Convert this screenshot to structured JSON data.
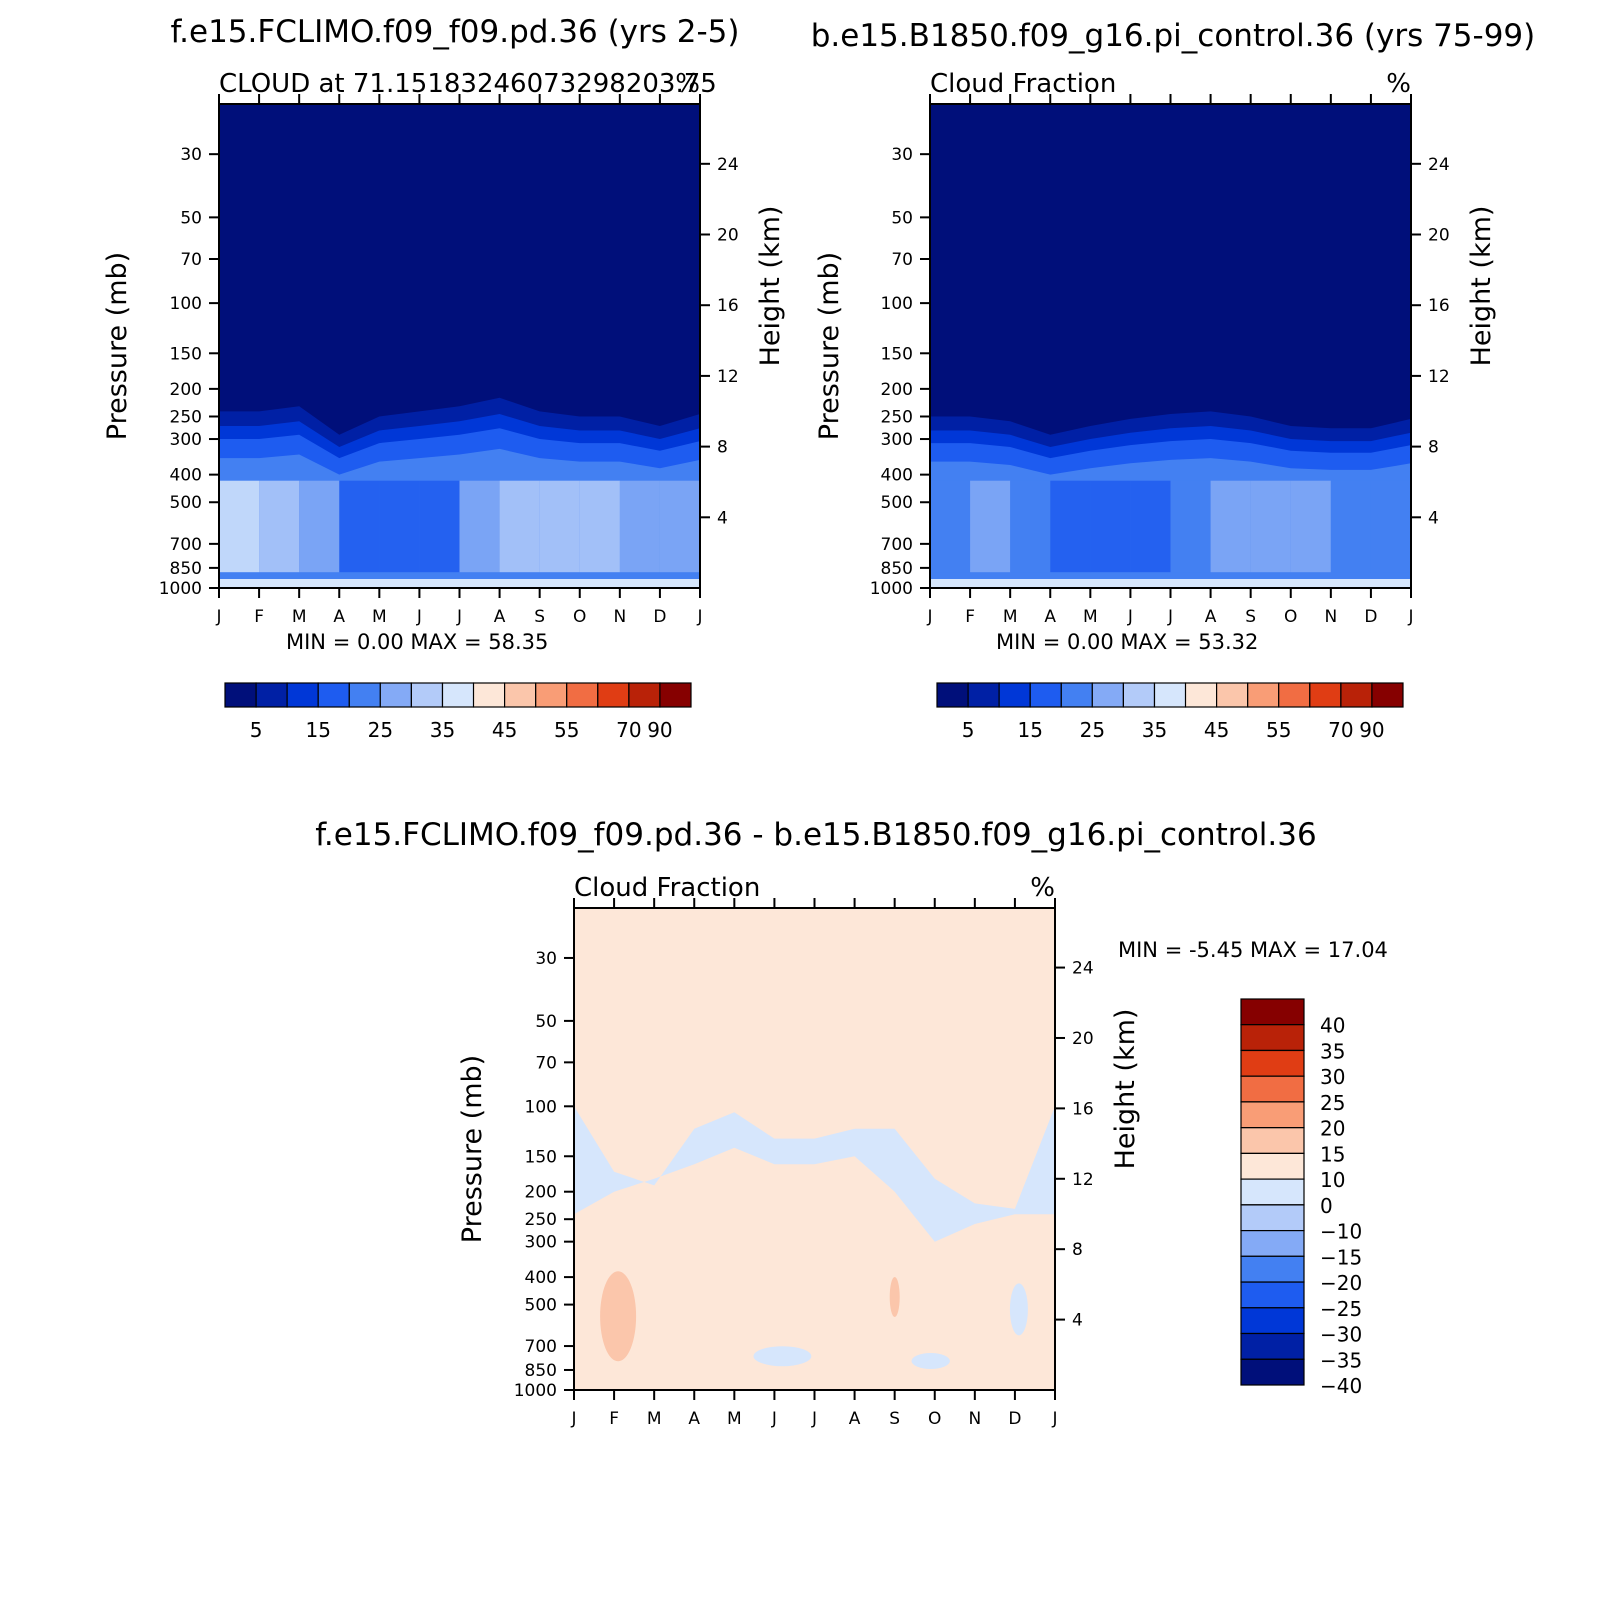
{
  "chart_data": [
    {
      "type": "heatmap",
      "title": "f.e15.FCLIMO.f09_f09.pd.36 (yrs 2-5)",
      "subtitle_left": "CLOUD at 71.15183246073298203.75",
      "subtitle_right": "%",
      "ylabel": "Pressure (mb)",
      "ylabel_right": "Height (km)",
      "x_ticks": [
        "J",
        "F",
        "M",
        "A",
        "M",
        "J",
        "J",
        "A",
        "S",
        "O",
        "N",
        "D",
        "J"
      ],
      "y_ticks": [
        "30",
        "50",
        "70",
        "100",
        "150",
        "200",
        "250",
        "300",
        "400",
        "500",
        "700",
        "850",
        "1000"
      ],
      "y_ticks_right": [
        "24",
        "20",
        "16",
        "12",
        "8",
        "4"
      ],
      "stats": {
        "min_label": "MIN =",
        "min": "0.00",
        "max_label": "MAX =",
        "max": "58.35"
      },
      "colorbar_labels": [
        "5",
        "15",
        "25",
        "35",
        "45",
        "55",
        "70",
        "90"
      ],
      "contour_levels": [
        5,
        10,
        15,
        20,
        25,
        30,
        35,
        40,
        45,
        50,
        55,
        60,
        70,
        80,
        90
      ],
      "cloud_top_pressure": [
        240,
        240,
        230,
        290,
        250,
        240,
        230,
        215,
        240,
        250,
        250,
        270,
        245
      ],
      "dominant_class_by_month_low_levels": [
        35,
        35,
        30,
        20,
        15,
        15,
        20,
        35,
        30,
        35,
        30,
        25,
        25
      ]
    },
    {
      "type": "heatmap",
      "title": "b.e15.B1850.f09_g16.pi_control.36 (yrs 75-99)",
      "subtitle_left": "Cloud Fraction",
      "subtitle_right": "%",
      "ylabel": "Pressure (mb)",
      "ylabel_right": "Height (km)",
      "x_ticks": [
        "J",
        "F",
        "M",
        "A",
        "M",
        "J",
        "J",
        "A",
        "S",
        "O",
        "N",
        "D",
        "J"
      ],
      "y_ticks": [
        "30",
        "50",
        "70",
        "100",
        "150",
        "200",
        "250",
        "300",
        "400",
        "500",
        "700",
        "850",
        "1000"
      ],
      "y_ticks_right": [
        "24",
        "20",
        "16",
        "12",
        "8",
        "4"
      ],
      "stats": {
        "min_label": "MIN =",
        "min": "0.00",
        "max_label": "MAX =",
        "max": "53.32"
      },
      "colorbar_labels": [
        "5",
        "15",
        "25",
        "35",
        "45",
        "55",
        "70",
        "90"
      ],
      "contour_levels": [
        5,
        10,
        15,
        20,
        25,
        30,
        35,
        40,
        45,
        50,
        55,
        60,
        70,
        80,
        90
      ],
      "cloud_top_pressure": [
        250,
        250,
        260,
        290,
        270,
        255,
        245,
        240,
        250,
        270,
        275,
        275,
        255
      ],
      "dominant_class_by_month_low_levels": [
        20,
        25,
        25,
        20,
        15,
        15,
        20,
        25,
        25,
        30,
        25,
        20,
        20
      ]
    },
    {
      "type": "heatmap",
      "title": "f.e15.FCLIMO.f09_f09.pd.36 - b.e15.B1850.f09_g16.pi_control.36",
      "subtitle_left": "Cloud Fraction",
      "subtitle_right": "%",
      "ylabel": "Pressure (mb)",
      "ylabel_right": "Height (km)",
      "x_ticks": [
        "J",
        "F",
        "M",
        "A",
        "M",
        "J",
        "J",
        "A",
        "S",
        "O",
        "N",
        "D",
        "J"
      ],
      "y_ticks": [
        "30",
        "50",
        "70",
        "100",
        "150",
        "200",
        "250",
        "300",
        "400",
        "500",
        "700",
        "850",
        "1000"
      ],
      "y_ticks_right": [
        "24",
        "20",
        "16",
        "12",
        "8",
        "4"
      ],
      "stats": {
        "min_label": "MIN =",
        "min": "-5.45",
        "max_label": "MAX =",
        "max": "17.04"
      },
      "colorbar_labels": [
        "40",
        "35",
        "30",
        "25",
        "20",
        "15",
        "10",
        "0",
        "-10",
        "-15",
        "-20",
        "-25",
        "-30",
        "-35",
        "-40"
      ],
      "contour_levels": [
        -40,
        -35,
        -30,
        -25,
        -20,
        -15,
        -10,
        0,
        10,
        15,
        20,
        25,
        30,
        35,
        40
      ],
      "dominant_class": "0 to 10",
      "negative_regions": "-10 to 0 between about 100 and 300 mb and near 700-850 mb in several months"
    }
  ],
  "colors": {
    "seq": [
      "#000f7a",
      "#0020a5",
      "#0037d7",
      "#1e5cf0",
      "#4380f2",
      "#84aaf6",
      "#b3cbf9",
      "#d6e6fc",
      "#fde7d8",
      "#fbc6ab",
      "#f99d76",
      "#f16d43",
      "#e03d14",
      "#b92208",
      "#860000"
    ],
    "diff": [
      "#860000",
      "#b92208",
      "#e03d14",
      "#f16d43",
      "#f99d76",
      "#fbc6ab",
      "#fde7d8",
      "#d6e6fc",
      "#b3cbf9",
      "#84aaf6",
      "#4380f2",
      "#1e5cf0",
      "#0037d7",
      "#0020a5",
      "#000f7a"
    ]
  }
}
